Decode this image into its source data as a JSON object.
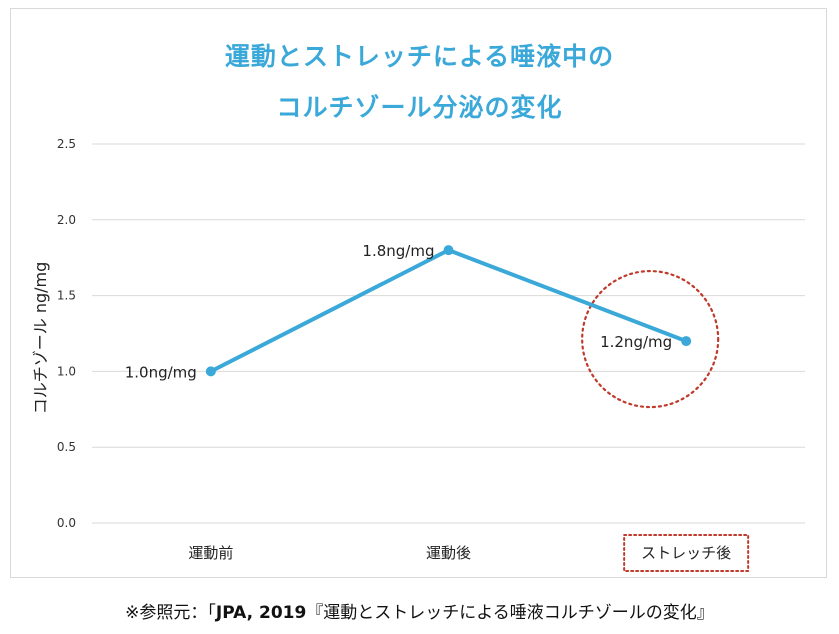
{
  "title_line1": "運動とストレッチによる唾液中の",
  "title_line2": "コルチゾール分泌の変化",
  "source": {
    "prefix": "※参照元：「",
    "bold": "JPA, 2019",
    "suffix": "『運動とストレッチによる唾液コルチゾールの変化』"
  },
  "chart_data": {
    "type": "line",
    "ylabel": "コルチゾール ng/mg",
    "xlabel": "",
    "ylim": [
      0,
      2.5
    ],
    "yticks": [
      "0.0",
      "0.5",
      "1.0",
      "1.5",
      "2.0",
      "2.5"
    ],
    "categories": [
      "運動前",
      "運動後",
      "ストレッチ後"
    ],
    "values": [
      1.0,
      1.8,
      1.2
    ],
    "data_labels": [
      "1.0ng/mg",
      "1.8ng/mg",
      "1.2ng/mg"
    ],
    "highlight_index": 2,
    "grid": true,
    "colors": {
      "line": "#3aa8d8",
      "grid": "#d9d9d9",
      "highlight": "#c0392b",
      "title": "#3aa8d8"
    }
  }
}
